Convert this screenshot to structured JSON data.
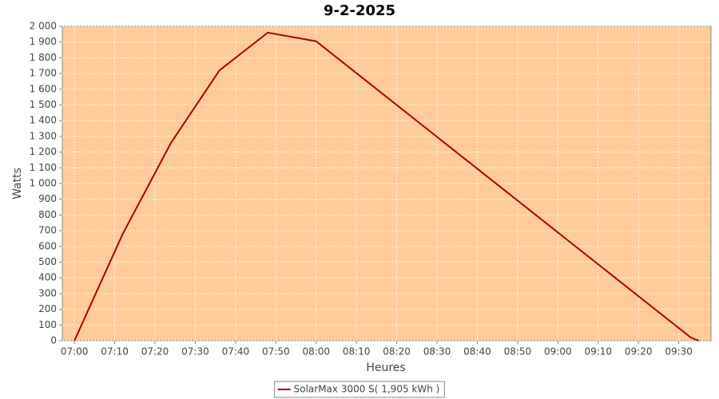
{
  "chart_data": {
    "type": "line",
    "title": "9-2-2025",
    "x_label": "Heures",
    "y_label": "Watts",
    "x": [
      "07:00",
      "07:12",
      "07:24",
      "07:36",
      "07:48",
      "08:00",
      "09:33",
      "09:35"
    ],
    "series": [
      {
        "name": "SolarMax 3000 S( 1,905 kWh )",
        "color": "#aa0000",
        "values": [
          0,
          680,
          1260,
          1720,
          1960,
          1905,
          20,
          0
        ]
      }
    ],
    "xlim": [
      "06:57",
      "09:38"
    ],
    "xticks": [
      "07:00",
      "07:10",
      "07:20",
      "07:30",
      "07:40",
      "07:50",
      "08:00",
      "08:10",
      "08:20",
      "08:30",
      "08:40",
      "08:50",
      "09:00",
      "09:10",
      "09:20",
      "09:30"
    ],
    "ylim": [
      0,
      2000
    ],
    "yticks": [
      0,
      100,
      200,
      300,
      400,
      500,
      600,
      700,
      800,
      900,
      {
        "value": 1000,
        "label": "1 000"
      },
      {
        "value": 1100,
        "label": "1 100"
      },
      {
        "value": 1200,
        "label": "1 200"
      },
      {
        "value": 1300,
        "label": "1 300"
      },
      {
        "value": 1400,
        "label": "1 400"
      },
      {
        "value": 1500,
        "label": "1 500"
      },
      {
        "value": 1600,
        "label": "1 600"
      },
      {
        "value": 1700,
        "label": "1 700"
      },
      {
        "value": 1800,
        "label": "1 800"
      },
      {
        "value": 1900,
        "label": "1 900"
      },
      {
        "value": 2000,
        "label": "2 000"
      }
    ],
    "grid": true,
    "background": "#ffcc99",
    "legend": "bottom"
  }
}
